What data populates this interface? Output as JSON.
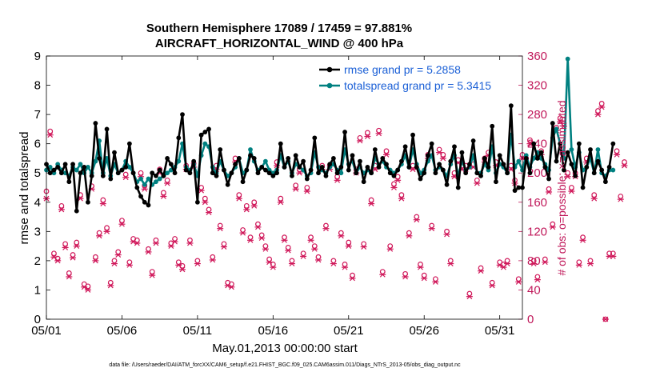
{
  "chart_data": {
    "type": "line",
    "title_line1": "Southern Hemisphere 17089 / 17459 = 97.881%",
    "title_line2": "AIRCRAFT_HORIZONTAL_WIND @ 400 hPa",
    "xlabel": "May.01,2013 00:00:00 start",
    "ylabel_left": "rmse and totalspread",
    "ylabel_right": "# of obs: o=possible; ×=assimilated",
    "footnote": "data file: /Users/raeder/DAI/ATM_forcXX/CAM6_setup/f.e21.FHIST_BGC.f09_025.CAM6assim.011/Diags_NTrS_2013-05/obs_diag_output.nc",
    "x_ticks": [
      "05/01",
      "05/06",
      "05/11",
      "05/16",
      "05/21",
      "05/26",
      "05/31"
    ],
    "x_tick_days": [
      0,
      5,
      10,
      15,
      20,
      25,
      30
    ],
    "xlim": [
      0,
      31.5
    ],
    "ylim_left": [
      0,
      9
    ],
    "y_ticks_left": [
      "0",
      "1",
      "2",
      "3",
      "4",
      "5",
      "6",
      "7",
      "8",
      "9"
    ],
    "ylim_right": [
      0,
      360
    ],
    "y_ticks_right": [
      "0",
      "40",
      "80",
      "120",
      "160",
      "200",
      "240",
      "280",
      "320",
      "360"
    ],
    "legend": {
      "rmse_label": "rmse grand pr = 5.2858",
      "spread_label": "totalspread grand pr = 5.3415",
      "position": "top-right"
    },
    "colors": {
      "rmse": "#000000",
      "spread": "#008080",
      "obs": "#d0185a",
      "right_axis": "#c0185a",
      "legend_text": "#1a5fd6"
    },
    "time_step_days": 0.25,
    "rmse": [
      5.3,
      5.0,
      5.1,
      5.2,
      5.0,
      5.3,
      4.7,
      5.3,
      3.7,
      5.0,
      5.2,
      4.0,
      4.9,
      6.7,
      5.5,
      4.9,
      6.5,
      4.8,
      5.7,
      5.0,
      5.1,
      5.2,
      6.0,
      5.0,
      4.5,
      4.2,
      4.0,
      3.9,
      5.0,
      4.9,
      5.1,
      4.9,
      5.5,
      5.3,
      5.0,
      6.2,
      7.0,
      5.1,
      5.0,
      5.4,
      4.0,
      6.3,
      6.4,
      6.5,
      5.0,
      4.9,
      5.8,
      5.1,
      4.6,
      5.0,
      5.3,
      5.5,
      4.7,
      5.1,
      5.6,
      5.5,
      5.0,
      5.2,
      5.1,
      5.0,
      4.9,
      5.0,
      6.0,
      5.2,
      5.5,
      4.9,
      5.6,
      5.2,
      5.4,
      4.8,
      5.1,
      6.2,
      5.0,
      5.2,
      4.9,
      5.3,
      5.5,
      5.0,
      5.2,
      6.4,
      5.1,
      5.6,
      5.0,
      5.4,
      4.7,
      5.2,
      5.0,
      5.8,
      5.2,
      5.5,
      5.3,
      5.0,
      4.9,
      5.1,
      5.4,
      5.9,
      5.2,
      6.3,
      5.2,
      4.8,
      5.0,
      5.6,
      6.0,
      5.0,
      5.3,
      5.1,
      4.6,
      5.4,
      5.9,
      4.5,
      5.7,
      5.0,
      5.3,
      6.1,
      5.0,
      4.9,
      5.5,
      5.2,
      6.6,
      4.7,
      5.6,
      5.3,
      5.0,
      7.3,
      4.4,
      4.5,
      4.5,
      5.5,
      5.0,
      6.0,
      5.5,
      5.7,
      5.2,
      4.8,
      6.7,
      5.4,
      6.0,
      5.1,
      5.7,
      5.3,
      4.9,
      6.0,
      4.5,
      5.2,
      5.8,
      5.0,
      5.4,
      5.1,
      4.7,
      5.2,
      6.0
    ],
    "totalspread": [
      5.1,
      5.2,
      5.0,
      5.3,
      5.1,
      5.0,
      4.9,
      5.2,
      5.1,
      5.3,
      5.0,
      5.2,
      5.0,
      5.4,
      6.1,
      5.0,
      5.5,
      4.9,
      5.3,
      5.0,
      5.1,
      5.4,
      5.2,
      5.0,
      4.7,
      4.8,
      4.6,
      4.8,
      4.6,
      4.7,
      4.8,
      4.9,
      5.0,
      5.1,
      5.2,
      5.4,
      6.0,
      5.2,
      5.1,
      5.3,
      4.9,
      5.6,
      6.0,
      5.9,
      5.2,
      5.0,
      5.4,
      5.1,
      4.9,
      5.0,
      5.2,
      5.5,
      5.0,
      5.1,
      5.8,
      5.4,
      5.1,
      5.2,
      5.4,
      5.1,
      5.0,
      5.1,
      5.6,
      5.2,
      5.4,
      5.0,
      5.3,
      5.2,
      5.1,
      4.9,
      5.0,
      5.7,
      5.2,
      5.1,
      5.0,
      5.2,
      5.3,
      5.1,
      5.0,
      5.8,
      5.3,
      5.4,
      5.0,
      5.2,
      5.0,
      5.1,
      5.0,
      5.5,
      5.3,
      5.4,
      5.2,
      5.1,
      5.0,
      5.1,
      5.3,
      5.6,
      5.2,
      5.8,
      5.3,
      5.0,
      5.1,
      5.4,
      5.6,
      5.1,
      5.2,
      5.1,
      4.9,
      5.3,
      5.6,
      4.9,
      5.4,
      5.1,
      5.2,
      5.6,
      5.0,
      5.0,
      5.3,
      5.1,
      5.9,
      5.0,
      5.3,
      5.2,
      5.0,
      6.3,
      5.2,
      5.4,
      5.1,
      5.6,
      5.2,
      5.5,
      5.7,
      5.5,
      5.3,
      5.1,
      6.2,
      6.5,
      6.0,
      5.5,
      8.9,
      5.8,
      5.2,
      5.7,
      5.1,
      5.2,
      5.5,
      5.0,
      5.8,
      5.0,
      4.9,
      5.1,
      5.1
    ],
    "obs_possible": [
      175,
      257,
      90,
      83,
      155,
      103,
      63,
      88,
      105,
      170,
      48,
      45,
      182,
      85,
      118,
      163,
      125,
      50,
      80,
      92,
      135,
      198,
      78,
      110,
      108,
      200,
      183,
      96,
      65,
      108,
      205,
      173,
      190,
      104,
      110,
      78,
      73,
      210,
      108,
      213,
      80,
      180,
      165,
      150,
      85,
      210,
      128,
      103,
      50,
      48,
      220,
      170,
      122,
      155,
      112,
      160,
      130,
      115,
      100,
      82,
      75,
      215,
      165,
      112,
      98,
      80,
      183,
      205,
      90,
      180,
      112,
      100,
      85,
      210,
      128,
      210,
      80,
      195,
      118,
      75,
      105,
      60,
      205,
      248,
      103,
      255,
      163,
      210,
      258,
      65,
      230,
      100,
      185,
      195,
      170,
      62,
      118,
      210,
      140,
      75,
      60,
      225,
      128,
      55,
      232,
      225,
      120,
      80,
      200,
      218,
      210,
      210,
      35,
      212,
      190,
      70,
      220,
      228,
      50,
      215,
      78,
      75,
      80,
      210,
      190,
      55,
      225,
      220,
      245,
      80,
      58,
      230,
      82,
      178,
      130,
      262,
      275,
      268,
      200,
      180,
      200,
      78,
      112,
      220,
      80,
      170,
      285,
      295,
      0,
      90,
      90,
      230,
      168,
      215
    ],
    "obs_assimilated": [
      165,
      252,
      85,
      80,
      150,
      98,
      58,
      84,
      100,
      165,
      44,
      40,
      178,
      80,
      114,
      158,
      120,
      46,
      76,
      88,
      130,
      194,
      74,
      106,
      104,
      195,
      178,
      92,
      60,
      104,
      200,
      168,
      186,
      100,
      106,
      74,
      68,
      205,
      104,
      208,
      76,
      176,
      160,
      146,
      81,
      205,
      124,
      99,
      46,
      44,
      215,
      165,
      118,
      150,
      108,
      155,
      126,
      111,
      96,
      78,
      71,
      210,
      160,
      108,
      94,
      76,
      178,
      200,
      86,
      175,
      108,
      96,
      81,
      205,
      124,
      205,
      76,
      190,
      114,
      71,
      100,
      56,
      200,
      244,
      99,
      250,
      158,
      205,
      254,
      61,
      225,
      96,
      180,
      190,
      165,
      58,
      114,
      205,
      136,
      71,
      56,
      220,
      124,
      51,
      228,
      220,
      116,
      76,
      195,
      214,
      205,
      205,
      31,
      208,
      186,
      66,
      215,
      224,
      46,
      210,
      74,
      71,
      76,
      205,
      186,
      51,
      220,
      215,
      240,
      76,
      54,
      225,
      78,
      174,
      126,
      258,
      270,
      264,
      195,
      175,
      195,
      74,
      108,
      215,
      76,
      165,
      280,
      290,
      0,
      86,
      86,
      225,
      164,
      210
    ]
  }
}
